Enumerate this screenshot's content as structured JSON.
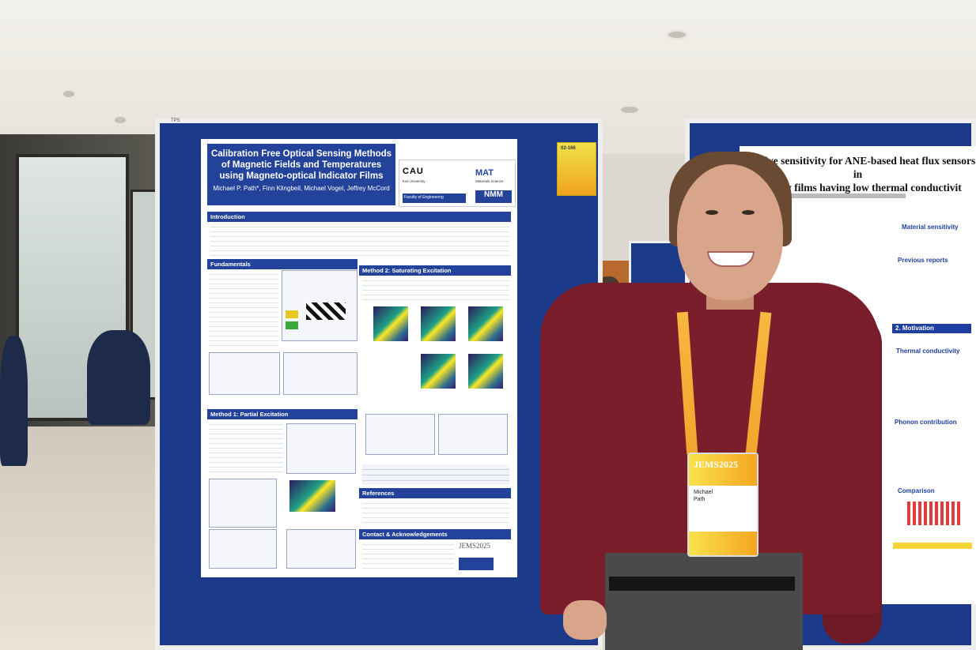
{
  "scene": {
    "description_colors": {
      "board": "#1b3a8a",
      "shirt": "#7a1e2b",
      "lanyard": "#f3a52e",
      "poster_header": "#23439b"
    }
  },
  "board_main": {
    "tag": "TPS"
  },
  "poster_main": {
    "title": "Calibration Free Optical Sensing Methods of Magnetic Fields and Temperatures using Magneto-optical Indicator Films",
    "authors": "Michael P. Path*, Finn Klingbeil, Michael Vogel, Jeffrey McCord",
    "logos": {
      "cau": "CAU",
      "cau_sub": "Kiel University",
      "faculty": "Faculty of Engineering",
      "mat": "MAT",
      "mat_sub": "Materials Science",
      "nmm": "NMM"
    },
    "sections": {
      "introduction": "Introduction",
      "fundamentals": "Fundamentals",
      "method2": "Method 2: Saturating Excitation",
      "method1": "Method 1: Partial Excitation",
      "references": "References",
      "contact": "Contact & Acknowledgements"
    },
    "footer_logo": "JEMS2025"
  },
  "sticker": {
    "label": "02-166"
  },
  "poster_right": {
    "heading_line1": "negative sensitivity for ANE-based heat flux sensors in",
    "heading_line2": "Co alloy films having low thermal conductivit",
    "sections": {
      "material": "Material sensitivity",
      "previous": "Previous reports",
      "motivation": "2. Motivation",
      "thermal": "Thermal conductivity",
      "phonon": "Phonon contribution",
      "comparison": "Comparison"
    }
  },
  "badge": {
    "logo": "JEMS2025",
    "name_line1": "Michael",
    "name_line2": "Path"
  }
}
